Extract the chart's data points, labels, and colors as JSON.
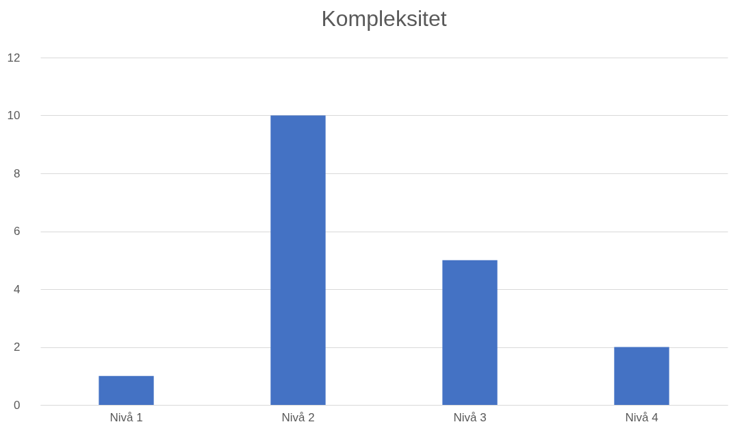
{
  "chart_data": {
    "type": "bar",
    "title": "Kompleksitet",
    "categories": [
      "Nivå 1",
      "Nivå 2",
      "Nivå 3",
      "Nivå 4"
    ],
    "values": [
      1,
      10,
      5,
      2
    ],
    "color": "#4472c4",
    "ylim": [
      0,
      12
    ],
    "yticks": [
      0,
      2,
      4,
      6,
      8,
      10,
      12
    ],
    "grid": "y"
  }
}
